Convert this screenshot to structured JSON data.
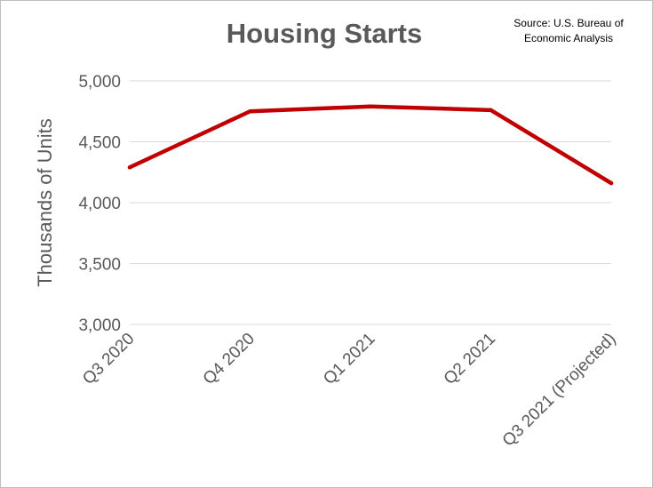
{
  "chart_data": {
    "type": "line",
    "title": "Housing Starts",
    "source_lines": [
      "Source: U.S. Bureau of",
      "Economic Analysis"
    ],
    "xlabel": "",
    "ylabel": "Thousands of Units",
    "categories": [
      "Q3 2020",
      "Q4 2020",
      "Q1 2021",
      "Q2 2021",
      "Q3 2021 (Projected)"
    ],
    "series": [
      {
        "values": [
          4290,
          4750,
          4790,
          4760,
          4160
        ],
        "color": "#c00000"
      }
    ],
    "ylim": [
      3000,
      5000
    ],
    "yticks": [
      3000,
      3500,
      4000,
      4500,
      5000
    ],
    "ytick_labels": [
      "3,000",
      "3,500",
      "4,000",
      "4,500",
      "5,000"
    ],
    "grid": true,
    "legend": "none"
  }
}
